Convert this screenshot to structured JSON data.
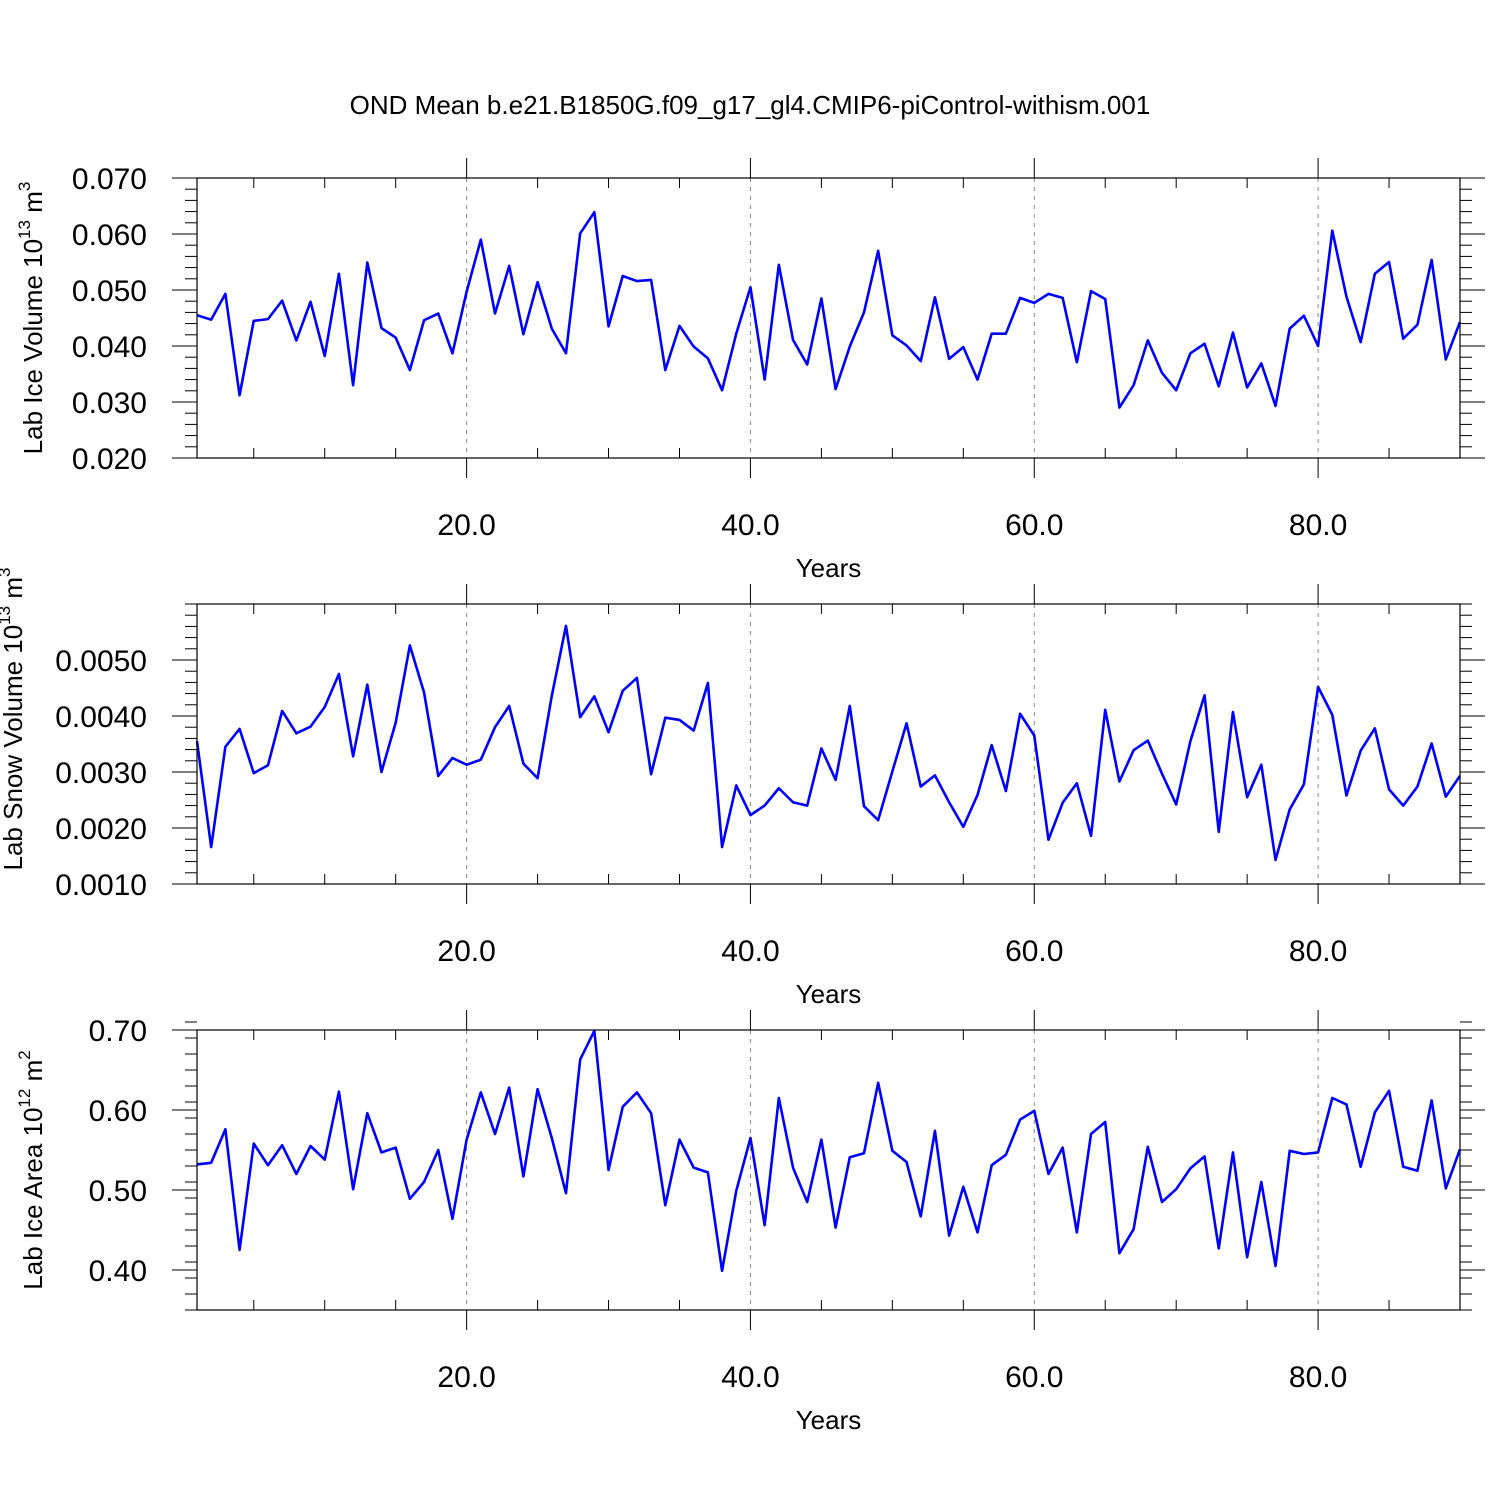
{
  "title": "OND Mean b.e21.B1850G.f09_g17_gl4.CMIP6-piControl-withism.001",
  "line_color": "#0000ff",
  "chart_data": [
    {
      "type": "line",
      "ylabel_main": "Lab Ice Volume 10",
      "ylabel_exp": "13",
      "ylabel_unit": " m",
      "ylabel_unit_exp": "3",
      "xlabel": "Years",
      "xlim": [
        1,
        90
      ],
      "ylim": [
        0.02,
        0.07
      ],
      "xticks": [
        20,
        40,
        60,
        80
      ],
      "xtick_labels": [
        "20.0",
        "40.0",
        "60.0",
        "80.0"
      ],
      "yticks": [
        0.02,
        0.03,
        0.04,
        0.05,
        0.06,
        0.07
      ],
      "ytick_labels": [
        "0.020",
        "0.030",
        "0.040",
        "0.050",
        "0.060",
        "0.070"
      ],
      "x_start": 1,
      "values": [
        0.0455,
        0.0447,
        0.0493,
        0.0312,
        0.0445,
        0.0448,
        0.0481,
        0.041,
        0.0479,
        0.0382,
        0.0529,
        0.033,
        0.0549,
        0.0432,
        0.0415,
        0.0357,
        0.0446,
        0.0458,
        0.0387,
        0.0497,
        0.059,
        0.0458,
        0.0543,
        0.0421,
        0.0514,
        0.0431,
        0.0387,
        0.0601,
        0.0639,
        0.0435,
        0.0525,
        0.0516,
        0.0518,
        0.0357,
        0.0436,
        0.0399,
        0.0378,
        0.0321,
        0.0422,
        0.0505,
        0.034,
        0.0545,
        0.0411,
        0.0367,
        0.0485,
        0.0323,
        0.0399,
        0.046,
        0.057,
        0.0419,
        0.0401,
        0.0373,
        0.0487,
        0.0377,
        0.0398,
        0.034,
        0.0422,
        0.0422,
        0.0486,
        0.0477,
        0.0493,
        0.0486,
        0.0371,
        0.0498,
        0.0484,
        0.029,
        0.033,
        0.041,
        0.0352,
        0.0321,
        0.0387,
        0.0404,
        0.0328,
        0.0424,
        0.0326,
        0.0369,
        0.0293,
        0.0431,
        0.0454,
        0.04,
        0.0606,
        0.0488,
        0.0407,
        0.0529,
        0.055,
        0.0413,
        0.0438,
        0.0554,
        0.0376,
        0.0443
      ]
    },
    {
      "type": "line",
      "ylabel_main": "Lab Snow Volume 10",
      "ylabel_exp": "13",
      "ylabel_unit": " m",
      "ylabel_unit_exp": "3",
      "xlabel": "Years",
      "xlim": [
        1,
        90
      ],
      "ylim": [
        0.001,
        0.006
      ],
      "xticks": [
        20,
        40,
        60,
        80
      ],
      "xtick_labels": [
        "20.0",
        "40.0",
        "60.0",
        "80.0"
      ],
      "yticks": [
        0.001,
        0.002,
        0.003,
        0.004,
        0.005
      ],
      "ytick_labels": [
        "0.0010",
        "0.0020",
        "0.0030",
        "0.0040",
        "0.0050"
      ],
      "x_start": 1,
      "values": [
        0.00355,
        0.00166,
        0.00345,
        0.00377,
        0.00298,
        0.00312,
        0.00409,
        0.00369,
        0.00381,
        0.00416,
        0.00475,
        0.00328,
        0.00456,
        0.003,
        0.00388,
        0.00526,
        0.00442,
        0.00293,
        0.00325,
        0.00313,
        0.00322,
        0.0038,
        0.00418,
        0.00315,
        0.00289,
        0.00436,
        0.00561,
        0.00398,
        0.00435,
        0.00371,
        0.00445,
        0.00468,
        0.00296,
        0.00397,
        0.00393,
        0.00374,
        0.00459,
        0.00166,
        0.00276,
        0.00223,
        0.0024,
        0.00271,
        0.00246,
        0.0024,
        0.00342,
        0.00286,
        0.00418,
        0.00239,
        0.00214,
        0.00301,
        0.00387,
        0.00274,
        0.00294,
        0.00246,
        0.00202,
        0.00259,
        0.00348,
        0.00266,
        0.00404,
        0.00365,
        0.00179,
        0.00245,
        0.0028,
        0.00186,
        0.00411,
        0.00283,
        0.00339,
        0.00356,
        0.00297,
        0.00242,
        0.00355,
        0.00437,
        0.00193,
        0.00407,
        0.00255,
        0.00313,
        0.00143,
        0.00233,
        0.00278,
        0.00452,
        0.00402,
        0.00258,
        0.00338,
        0.00378,
        0.00269,
        0.0024,
        0.00274,
        0.00351,
        0.00256,
        0.00293
      ]
    },
    {
      "type": "line",
      "ylabel_main": "Lab Ice Area 10",
      "ylabel_exp": "12",
      "ylabel_unit": " m",
      "ylabel_unit_exp": "2",
      "xlabel": "Years",
      "xlim": [
        1,
        90
      ],
      "ylim": [
        0.35,
        0.7
      ],
      "xticks": [
        20,
        40,
        60,
        80
      ],
      "xtick_labels": [
        "20.0",
        "40.0",
        "60.0",
        "80.0"
      ],
      "yticks": [
        0.4,
        0.5,
        0.6,
        0.7
      ],
      "ytick_labels": [
        "0.40",
        "0.50",
        "0.60",
        "0.70"
      ],
      "x_start": 1,
      "values": [
        0.532,
        0.534,
        0.576,
        0.425,
        0.558,
        0.531,
        0.556,
        0.52,
        0.555,
        0.538,
        0.623,
        0.501,
        0.596,
        0.547,
        0.553,
        0.489,
        0.51,
        0.55,
        0.464,
        0.563,
        0.622,
        0.57,
        0.628,
        0.517,
        0.626,
        0.565,
        0.496,
        0.663,
        0.699,
        0.525,
        0.604,
        0.622,
        0.596,
        0.481,
        0.563,
        0.528,
        0.522,
        0.399,
        0.499,
        0.565,
        0.456,
        0.615,
        0.528,
        0.485,
        0.563,
        0.453,
        0.541,
        0.546,
        0.634,
        0.549,
        0.535,
        0.467,
        0.574,
        0.443,
        0.504,
        0.447,
        0.531,
        0.544,
        0.588,
        0.599,
        0.52,
        0.553,
        0.447,
        0.57,
        0.585,
        0.421,
        0.451,
        0.554,
        0.485,
        0.501,
        0.527,
        0.542,
        0.427,
        0.547,
        0.416,
        0.51,
        0.405,
        0.549,
        0.545,
        0.547,
        0.615,
        0.607,
        0.529,
        0.597,
        0.624,
        0.529,
        0.524,
        0.612,
        0.502,
        0.551
      ]
    }
  ]
}
